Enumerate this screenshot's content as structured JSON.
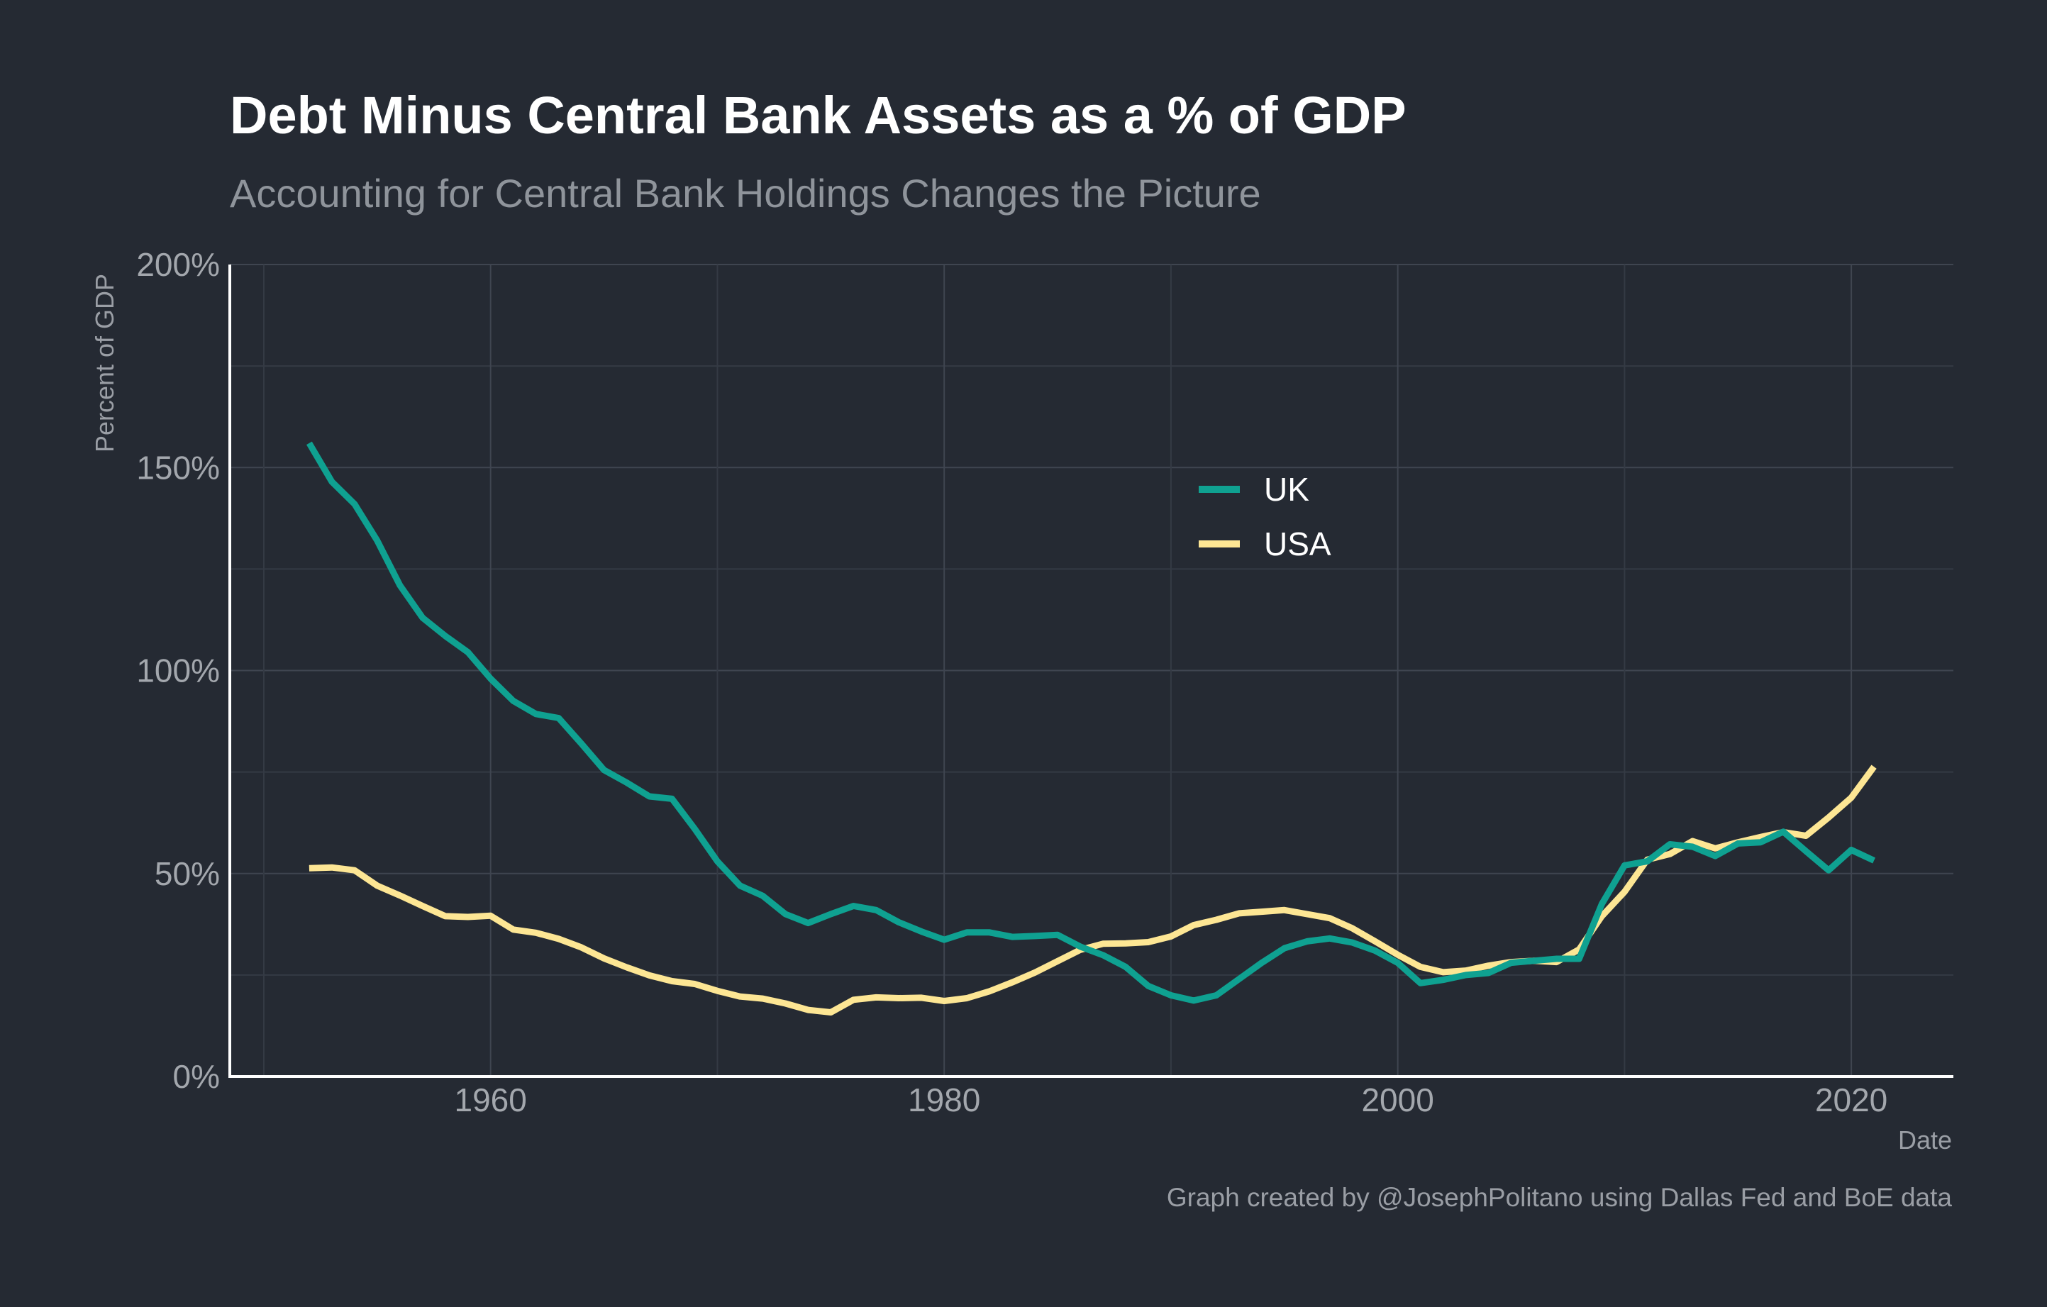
{
  "chart_data": {
    "type": "line",
    "title": "Debt Minus Central Bank Assets as a % of GDP",
    "subtitle": "Accounting for Central Bank Holdings Changes the Picture",
    "xlabel": "Date",
    "ylabel": "Percent of GDP",
    "caption": "Graph created by @JosephPolitano using Dallas Fed and BoE data",
    "xlim": [
      1948.5,
      2024.5
    ],
    "ylim": [
      0,
      200
    ],
    "x_ticks": [
      1960,
      1980,
      2000,
      2020
    ],
    "x_tick_labels": [
      "1960",
      "1980",
      "2000",
      "2020"
    ],
    "y_ticks": [
      0,
      50,
      100,
      150,
      200
    ],
    "y_tick_labels": [
      "0%",
      "50%",
      "100%",
      "150%",
      "200%"
    ],
    "grid": true,
    "legend_position": "inside-center",
    "series": [
      {
        "name": "UK",
        "color": "#0fa191",
        "x": [
          1952,
          1953,
          1954,
          1955,
          1956,
          1957,
          1958,
          1959,
          1960,
          1961,
          1962,
          1963,
          1964,
          1965,
          1966,
          1967,
          1968,
          1969,
          1970,
          1971,
          1972,
          1973,
          1974,
          1975,
          1976,
          1977,
          1978,
          1979,
          1980,
          1981,
          1982,
          1983,
          1984,
          1985,
          1986,
          1987,
          1988,
          1989,
          1990,
          1991,
          1992,
          1993,
          1994,
          1995,
          1996,
          1997,
          1998,
          1999,
          2000,
          2001,
          2002,
          2003,
          2004,
          2005,
          2006,
          2007,
          2008,
          2009,
          2010,
          2011,
          2012,
          2013,
          2014,
          2015,
          2016,
          2017,
          2018,
          2019,
          2020,
          2021
        ],
        "y": [
          156,
          146.5,
          141,
          132,
          121,
          113,
          108.5,
          104.5,
          98,
          92.5,
          89.3,
          88.3,
          82,
          75.5,
          72.4,
          69,
          68.4,
          61,
          53,
          47,
          44.5,
          40,
          37.8,
          40,
          42,
          41,
          38,
          35.7,
          33.7,
          35.5,
          35.5,
          34.4,
          34.6,
          34.9,
          32,
          29.9,
          27,
          22.3,
          20,
          18.7,
          20,
          24,
          28,
          31.6,
          33.3,
          34,
          33,
          31,
          28,
          23,
          23.8,
          25,
          25.5,
          28,
          28.5,
          29,
          29,
          42.5,
          52,
          53,
          57.2,
          56.6,
          54.3,
          57.4,
          57.7,
          60.3,
          55.5,
          50.8,
          55.8,
          53.2
        ]
      },
      {
        "name": "USA",
        "color": "#fde694",
        "x": [
          1952,
          1953,
          1954,
          1955,
          1956,
          1957,
          1958,
          1959,
          1960,
          1961,
          1962,
          1963,
          1964,
          1965,
          1966,
          1967,
          1968,
          1969,
          1970,
          1971,
          1972,
          1973,
          1974,
          1975,
          1976,
          1977,
          1978,
          1979,
          1980,
          1981,
          1982,
          1983,
          1984,
          1985,
          1986,
          1987,
          1988,
          1989,
          1990,
          1991,
          1992,
          1993,
          1994,
          1995,
          1996,
          1997,
          1998,
          1999,
          2000,
          2001,
          2002,
          2003,
          2004,
          2005,
          2006,
          2007,
          2008,
          2009,
          2010,
          2011,
          2012,
          2013,
          2014,
          2015,
          2016,
          2017,
          2018,
          2019,
          2020,
          2021
        ],
        "y": [
          51.3,
          51.5,
          50.8,
          47,
          44.6,
          42,
          39.5,
          39.3,
          39.6,
          36.2,
          35.4,
          33.9,
          31.8,
          29.1,
          26.9,
          24.9,
          23.5,
          22.8,
          21.1,
          19.7,
          19.2,
          18,
          16.4,
          15.8,
          18.9,
          19.5,
          19.3,
          19.4,
          18.6,
          19.3,
          21,
          23.2,
          25.6,
          28.4,
          31.2,
          32.7,
          32.8,
          33.1,
          34.5,
          37.3,
          38.6,
          40.2,
          40.6,
          41,
          40,
          39,
          36.5,
          33.3,
          30,
          27,
          25.7,
          26.1,
          27.3,
          28.2,
          28.5,
          28.2,
          31.3,
          39.5,
          45.5,
          53.4,
          54.8,
          58,
          56.2,
          57.7,
          59,
          60.2,
          59.3,
          63.8,
          68.7,
          76.3
        ]
      }
    ]
  }
}
